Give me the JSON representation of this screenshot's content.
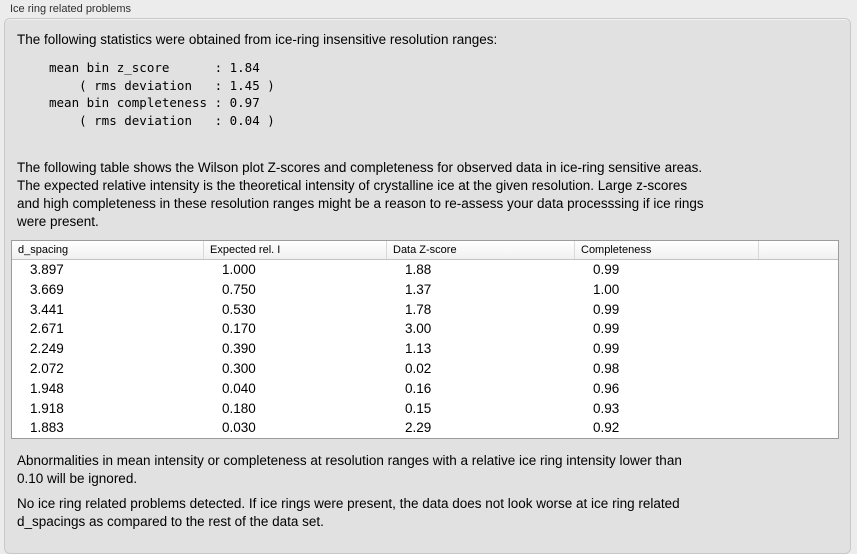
{
  "window": {
    "title": "Ice ring related problems"
  },
  "intro": "The following statistics were obtained from ice-ring insensitive resolution ranges:",
  "stats": {
    "block": "mean bin z_score      : 1.84\n    ( rms deviation   : 1.45 )\nmean bin completeness : 0.97\n    ( rms deviation   : 0.04 )",
    "mean_bin_z_score": "1.84",
    "z_score_rms_deviation": "1.45",
    "mean_bin_completeness": "0.97",
    "completeness_rms_deviation": "0.04"
  },
  "description": "The following table shows the Wilson plot Z-scores and completeness for observed data in ice-ring sensitive areas.\nThe expected relative intensity is the theoretical intensity of crystalline ice at the given resolution. Large z-scores\nand high completeness in these resolution ranges might be a reason to re-assess your data processsing if ice rings\nwere present.",
  "table": {
    "columns": [
      "d_spacing",
      "Expected rel. I",
      "Data Z-score",
      "Completeness"
    ],
    "rows": [
      [
        "3.897",
        "1.000",
        "1.88",
        "0.99"
      ],
      [
        "3.669",
        "0.750",
        "1.37",
        "1.00"
      ],
      [
        "3.441",
        "0.530",
        "1.78",
        "0.99"
      ],
      [
        "2.671",
        "0.170",
        "3.00",
        "0.99"
      ],
      [
        "2.249",
        "0.390",
        "1.13",
        "0.99"
      ],
      [
        "2.072",
        "0.300",
        "0.02",
        "0.98"
      ],
      [
        "1.948",
        "0.040",
        "0.16",
        "0.96"
      ],
      [
        "1.918",
        "0.180",
        "0.15",
        "0.93"
      ],
      [
        "1.883",
        "0.030",
        "2.29",
        "0.92"
      ]
    ]
  },
  "footnote": "Abnormalities in mean intensity or completeness at resolution ranges with a relative ice ring intensity lower than\n0.10 will be ignored.",
  "conclusion": "No ice ring related problems detected. If ice rings were present, the data does not look worse at ice ring related\nd_spacings as compared to the rest of the data set.",
  "colors": {
    "window_background": "#ececec",
    "panel_background": "#e1e1e1",
    "panel_border": "#c8c8c8",
    "table_border": "#9c9c9c",
    "table_header_background": "#f5f5f5",
    "text": "#000000"
  }
}
